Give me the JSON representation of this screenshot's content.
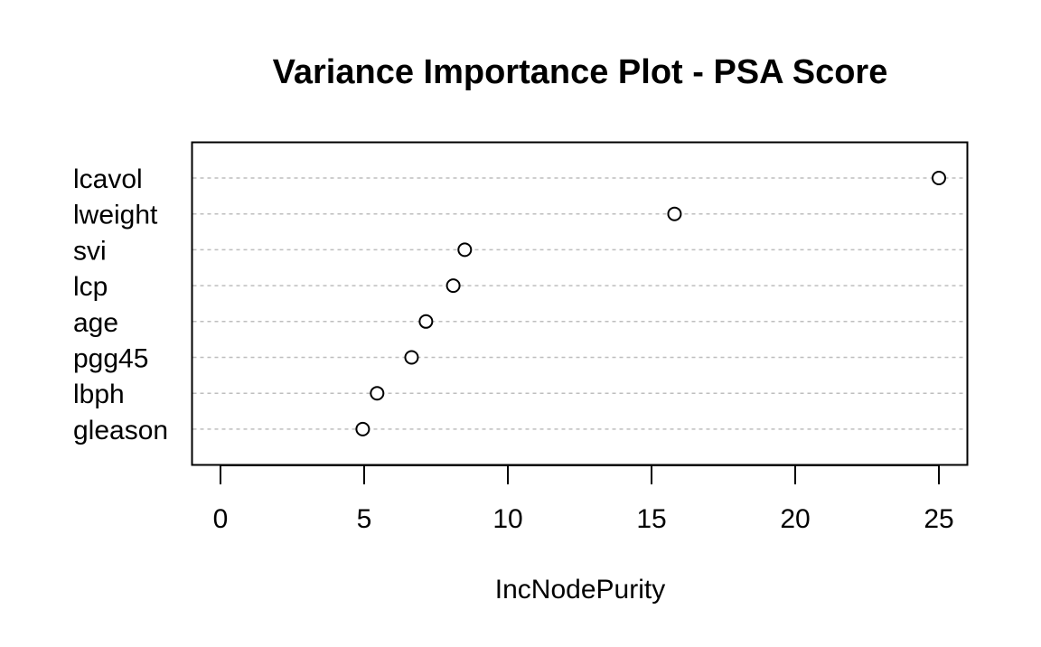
{
  "chart_data": {
    "type": "scatter",
    "title": "Variance Importance Plot - PSA Score",
    "xlabel": "IncNodePurity",
    "ylabel": "",
    "categories": [
      "lcavol",
      "lweight",
      "svi",
      "lcp",
      "age",
      "pgg45",
      "lbph",
      "gleason"
    ],
    "values": [
      25.0,
      15.8,
      8.5,
      8.1,
      7.15,
      6.65,
      5.45,
      4.95
    ],
    "xlim": [
      -1.0,
      26.0
    ],
    "xticks": [
      0,
      5,
      10,
      15,
      20,
      25
    ],
    "xtick_labels": [
      "0",
      "5",
      "10",
      "15",
      "20",
      "25"
    ],
    "grid": "dotted horizontal lines at each category",
    "legend": "none",
    "colors": {
      "points": "#000000",
      "grid": "#bebebe",
      "frame": "#000000"
    }
  }
}
